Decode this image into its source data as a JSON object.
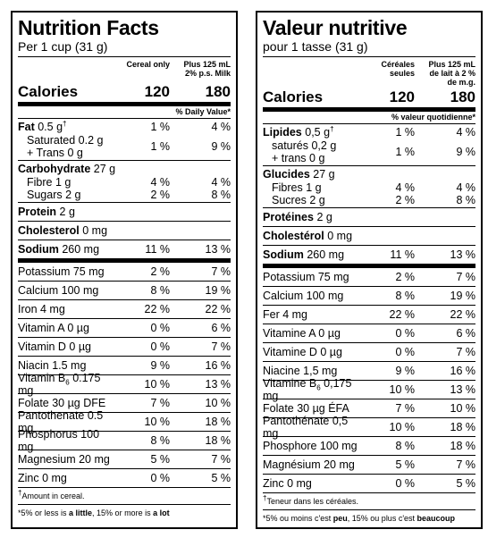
{
  "en": {
    "title": "Nutrition Facts",
    "serving": "Per 1 cup (31 g)",
    "col1": "Cereal only",
    "col2_line1": "Plus 125 mL",
    "col2_line2": "2% p.s. Milk",
    "calories_label": "Calories",
    "calories_1": "120",
    "calories_2": "180",
    "dv_label": "% Daily Value*",
    "fat_label": "Fat",
    "fat_amount": "0.5 g",
    "fat_p1": "1 %",
    "fat_p2": "4 %",
    "sat_label": "Saturated 0.2 g",
    "trans_label": "+ Trans 0 g",
    "sat_p1": "1 %",
    "sat_p2": "9 %",
    "carb_label": "Carbohydrate",
    "carb_amount": "27 g",
    "fibre_label": "Fibre 1 g",
    "fibre_p1": "4 %",
    "fibre_p2": "4 %",
    "sugars_label": "Sugars 2 g",
    "sugars_p1": "2 %",
    "sugars_p2": "8 %",
    "protein_label": "Protein",
    "protein_amount": "2 g",
    "chol_label": "Cholesterol",
    "chol_amount": "0 mg",
    "sodium_label": "Sodium",
    "sodium_amount": "260 mg",
    "sodium_p1": "11 %",
    "sodium_p2": "13 %",
    "vitamins": [
      {
        "label": "Potassium 75 mg",
        "p1": "2 %",
        "p2": "7 %"
      },
      {
        "label": "Calcium 100 mg",
        "p1": "8 %",
        "p2": "19 %"
      },
      {
        "label": "Iron 4 mg",
        "p1": "22 %",
        "p2": "22 %"
      },
      {
        "label": "Vitamin A 0 µg",
        "p1": "0 %",
        "p2": "6 %"
      },
      {
        "label": "Vitamin D 0 µg",
        "p1": "0 %",
        "p2": "7 %"
      },
      {
        "label": "Niacin 1.5 mg",
        "p1": "9 %",
        "p2": "16 %"
      },
      {
        "label_pre": "Vitamin B",
        "label_sub": "6",
        "label_post": " 0.175 mg",
        "p1": "10 %",
        "p2": "13 %"
      },
      {
        "label": "Folate 30 µg DFE",
        "p1": "7 %",
        "p2": "10 %"
      },
      {
        "label": "Pantothenate 0.5 mg",
        "p1": "10 %",
        "p2": "18 %"
      },
      {
        "label": "Phosphorus 100 mg",
        "p1": "8 %",
        "p2": "18 %"
      },
      {
        "label": "Magnesium 20 mg",
        "p1": "5 %",
        "p2": "7 %"
      },
      {
        "label": "Zinc 0 mg",
        "p1": "0 %",
        "p2": "5 %"
      }
    ],
    "footnote": "Amount in cereal.",
    "footer_pre": "*5% or less is ",
    "footer_little": "a little",
    "footer_mid": ", 15% or more is ",
    "footer_lot": "a lot"
  },
  "fr": {
    "title": "Valeur nutritive",
    "serving": "pour 1 tasse (31 g)",
    "col1_line1": "Céréales",
    "col1_line2": "seules",
    "col2_line1": "Plus 125 mL",
    "col2_line2": "de lait à 2 %",
    "col2_line3": "de m.g.",
    "calories_label": "Calories",
    "calories_1": "120",
    "calories_2": "180",
    "dv_label": "% valeur quotidienne*",
    "fat_label": "Lipides",
    "fat_amount": "0,5 g",
    "fat_p1": "1 %",
    "fat_p2": "4 %",
    "sat_label": "saturés 0,2 g",
    "trans_label": "+ trans 0 g",
    "sat_p1": "1 %",
    "sat_p2": "9 %",
    "carb_label": "Glucides",
    "carb_amount": "27 g",
    "fibre_label": "Fibres 1 g",
    "fibre_p1": "4 %",
    "fibre_p2": "4 %",
    "sugars_label": "Sucres 2 g",
    "sugars_p1": "2 %",
    "sugars_p2": "8 %",
    "protein_label": "Protéines",
    "protein_amount": "2 g",
    "chol_label": "Cholestérol",
    "chol_amount": "0 mg",
    "sodium_label": "Sodium",
    "sodium_amount": "260 mg",
    "sodium_p1": "11 %",
    "sodium_p2": "13 %",
    "vitamins": [
      {
        "label": "Potassium 75 mg",
        "p1": "2 %",
        "p2": "7 %"
      },
      {
        "label": "Calcium 100 mg",
        "p1": "8 %",
        "p2": "19 %"
      },
      {
        "label": "Fer 4 mg",
        "p1": "22 %",
        "p2": "22 %"
      },
      {
        "label": "Vitamine A 0 µg",
        "p1": "0 %",
        "p2": "6 %"
      },
      {
        "label": "Vitamine D 0 µg",
        "p1": "0 %",
        "p2": "7 %"
      },
      {
        "label": "Niacine 1,5 mg",
        "p1": "9 %",
        "p2": "16 %"
      },
      {
        "label_pre": "Vitamine B",
        "label_sub": "6",
        "label_post": " 0,175 mg",
        "p1": "10 %",
        "p2": "13 %"
      },
      {
        "label": "Folate 30 µg ÉFA",
        "p1": "7 %",
        "p2": "10 %"
      },
      {
        "label": "Pantothénate 0,5 mg",
        "p1": "10 %",
        "p2": "18 %"
      },
      {
        "label": "Phosphore 100 mg",
        "p1": "8 %",
        "p2": "18 %"
      },
      {
        "label": "Magnésium 20 mg",
        "p1": "5 %",
        "p2": "7 %"
      },
      {
        "label": "Zinc 0 mg",
        "p1": "0 %",
        "p2": "5 %"
      }
    ],
    "footnote": "Teneur dans les céréales.",
    "footer_pre": "*5% ou moins c'est ",
    "footer_little": "peu",
    "footer_mid": ", 15% ou plus c'est ",
    "footer_lot": "beaucoup"
  },
  "dagger": "†"
}
